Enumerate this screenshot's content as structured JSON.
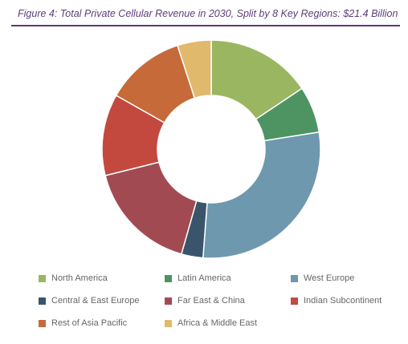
{
  "chart_data": {
    "type": "pie",
    "title": "Figure 4: Total Private Cellular Revenue in 2030, Split by 8 Key Regions: $21.4 Billion",
    "donut": true,
    "legend_position": "bottom",
    "series": [
      {
        "name": "North America",
        "value": 15.6,
        "color": "#9bb661"
      },
      {
        "name": "Latin America",
        "value": 6.9,
        "color": "#4e9463"
      },
      {
        "name": "West Europe",
        "value": 28.7,
        "color": "#6e98ae"
      },
      {
        "name": "Central & East Europe",
        "value": 3.2,
        "color": "#3a546c"
      },
      {
        "name": "Far East & China",
        "value": 16.7,
        "color": "#a24a52"
      },
      {
        "name": "Indian Subcontinent",
        "value": 12.1,
        "color": "#c3493f"
      },
      {
        "name": "Rest of Asia Pacific",
        "value": 11.8,
        "color": "#c66a3a"
      },
      {
        "name": "Africa & Middle East",
        "value": 5.0,
        "color": "#e1b96c"
      }
    ]
  }
}
